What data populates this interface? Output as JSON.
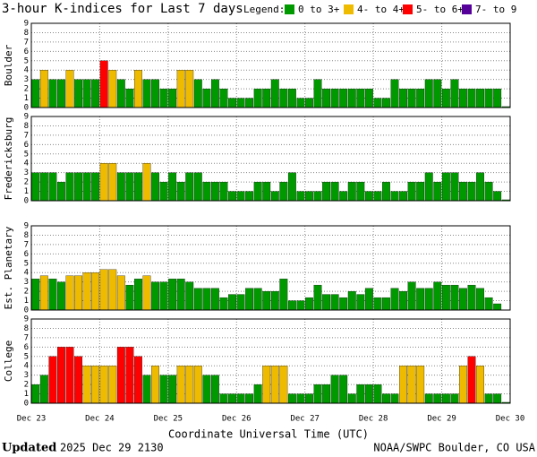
{
  "title": "3-hour K-indices for Last 7 days",
  "legend": {
    "title": "Legend:",
    "entries": [
      {
        "name": "0 to 3+",
        "color": "#009900"
      },
      {
        "name": "4- to 4+",
        "color": "#eebb00"
      },
      {
        "name": "5- to 6+",
        "color": "#ff0000"
      },
      {
        "name": "7- to 9",
        "color": "#550099"
      }
    ]
  },
  "x_ticks": [
    "Dec 23",
    "Dec 24",
    "Dec 25",
    "Dec 26",
    "Dec 27",
    "Dec 28",
    "Dec 29",
    "Dec 30"
  ],
  "x_label": "Coordinate Universal Time (UTC)",
  "updated_label": "Updated",
  "updated": "2025 Dec 29 2130",
  "credit": "NOAA/SWPC Boulder, CO USA",
  "chart_data": [
    {
      "type": "bar",
      "y_label": "Boulder",
      "ylim": [
        0,
        9
      ],
      "yticks": [
        0,
        1,
        2,
        3,
        4,
        5,
        6,
        7,
        8,
        9
      ],
      "grid": true,
      "values": [
        3,
        4,
        3,
        3,
        4,
        3,
        3,
        3,
        5,
        4,
        3,
        2,
        4,
        3,
        3,
        2,
        2,
        4,
        4,
        3,
        2,
        3,
        2,
        1,
        1,
        1,
        2,
        2,
        3,
        2,
        2,
        1,
        1,
        3,
        2,
        2,
        2,
        2,
        2,
        2,
        1,
        1,
        3,
        2,
        2,
        2,
        3,
        3,
        2,
        3,
        2,
        2,
        2,
        2,
        2,
        0.1
      ],
      "colors": [
        "#009900",
        "#eebb00",
        "#009900",
        "#009900",
        "#eebb00",
        "#009900",
        "#009900",
        "#009900",
        "#ff0000",
        "#eebb00",
        "#009900",
        "#009900",
        "#eebb00",
        "#009900",
        "#009900",
        "#009900",
        "#009900",
        "#eebb00",
        "#eebb00",
        "#009900",
        "#009900",
        "#009900",
        "#009900",
        "#009900",
        "#009900",
        "#009900",
        "#009900",
        "#009900",
        "#009900",
        "#009900",
        "#009900",
        "#009900",
        "#009900",
        "#009900",
        "#009900",
        "#009900",
        "#009900",
        "#009900",
        "#009900",
        "#009900",
        "#009900",
        "#009900",
        "#009900",
        "#009900",
        "#009900",
        "#009900",
        "#009900",
        "#009900",
        "#009900",
        "#009900",
        "#009900",
        "#009900",
        "#009900",
        "#009900",
        "#009900",
        "#009900"
      ]
    },
    {
      "type": "bar",
      "y_label": "Fredericksburg",
      "ylim": [
        0,
        9
      ],
      "yticks": [
        0,
        1,
        2,
        3,
        4,
        5,
        6,
        7,
        8,
        9
      ],
      "grid": true,
      "values": [
        3,
        3,
        3,
        2,
        3,
        3,
        3,
        3,
        4,
        4,
        3,
        3,
        3,
        4,
        3,
        2,
        3,
        2,
        3,
        3,
        2,
        2,
        2,
        1,
        1,
        1,
        2,
        2,
        1,
        2,
        3,
        1,
        1,
        1,
        2,
        2,
        1,
        2,
        2,
        1,
        1,
        2,
        1,
        1,
        2,
        2,
        3,
        2,
        3,
        3,
        2,
        2,
        3,
        2,
        1,
        0.1
      ],
      "colors": [
        "#009900",
        "#009900",
        "#009900",
        "#009900",
        "#009900",
        "#009900",
        "#009900",
        "#009900",
        "#eebb00",
        "#eebb00",
        "#009900",
        "#009900",
        "#009900",
        "#eebb00",
        "#009900",
        "#009900",
        "#009900",
        "#009900",
        "#009900",
        "#009900",
        "#009900",
        "#009900",
        "#009900",
        "#009900",
        "#009900",
        "#009900",
        "#009900",
        "#009900",
        "#009900",
        "#009900",
        "#009900",
        "#009900",
        "#009900",
        "#009900",
        "#009900",
        "#009900",
        "#009900",
        "#009900",
        "#009900",
        "#009900",
        "#009900",
        "#009900",
        "#009900",
        "#009900",
        "#009900",
        "#009900",
        "#009900",
        "#009900",
        "#009900",
        "#009900",
        "#009900",
        "#009900",
        "#009900",
        "#009900",
        "#009900",
        "#009900"
      ]
    },
    {
      "type": "bar",
      "y_label": "Est. Planetary",
      "ylim": [
        0,
        9
      ],
      "yticks": [
        0,
        1,
        2,
        3,
        4,
        5,
        6,
        7,
        8,
        9
      ],
      "grid": true,
      "values": [
        3.33,
        3.67,
        3.33,
        3,
        3.67,
        3.67,
        4,
        4,
        4.33,
        4.33,
        3.67,
        2.67,
        3.33,
        3.67,
        3,
        3,
        3.33,
        3.33,
        3,
        2.33,
        2.33,
        2.33,
        1.33,
        1.67,
        1.67,
        2.33,
        2.33,
        2,
        2,
        3.33,
        1,
        1,
        1.33,
        2.67,
        1.67,
        1.67,
        1.33,
        2,
        1.67,
        2.33,
        1.33,
        1.33,
        2.33,
        2,
        3,
        2.33,
        2.33,
        3,
        2.67,
        2.67,
        2.33,
        2.67,
        2.33,
        1.33,
        0.67,
        0
      ],
      "colors": [
        "#009900",
        "#eebb00",
        "#009900",
        "#009900",
        "#eebb00",
        "#eebb00",
        "#eebb00",
        "#eebb00",
        "#eebb00",
        "#eebb00",
        "#eebb00",
        "#009900",
        "#009900",
        "#eebb00",
        "#009900",
        "#009900",
        "#009900",
        "#009900",
        "#009900",
        "#009900",
        "#009900",
        "#009900",
        "#009900",
        "#009900",
        "#009900",
        "#009900",
        "#009900",
        "#009900",
        "#009900",
        "#009900",
        "#009900",
        "#009900",
        "#009900",
        "#009900",
        "#009900",
        "#009900",
        "#009900",
        "#009900",
        "#009900",
        "#009900",
        "#009900",
        "#009900",
        "#009900",
        "#009900",
        "#009900",
        "#009900",
        "#009900",
        "#009900",
        "#009900",
        "#009900",
        "#009900",
        "#009900",
        "#009900",
        "#009900",
        "#009900",
        "#009900"
      ]
    },
    {
      "type": "bar",
      "y_label": "College",
      "ylim": [
        0,
        9
      ],
      "yticks": [
        0,
        1,
        2,
        3,
        4,
        5,
        6,
        7,
        8,
        9
      ],
      "grid": true,
      "values": [
        2,
        3,
        5,
        6,
        6,
        5,
        4,
        4,
        4,
        4,
        6,
        6,
        5,
        3,
        4,
        3,
        3,
        4,
        4,
        4,
        3,
        3,
        1,
        1,
        1,
        1,
        2,
        4,
        4,
        4,
        1,
        1,
        1,
        2,
        2,
        3,
        3,
        1,
        2,
        2,
        2,
        1,
        1,
        4,
        4,
        4,
        1,
        1,
        1,
        1,
        4,
        5,
        4,
        1,
        1,
        0.1
      ],
      "colors": [
        "#009900",
        "#009900",
        "#ff0000",
        "#ff0000",
        "#ff0000",
        "#ff0000",
        "#eebb00",
        "#eebb00",
        "#eebb00",
        "#eebb00",
        "#ff0000",
        "#ff0000",
        "#ff0000",
        "#009900",
        "#eebb00",
        "#009900",
        "#009900",
        "#eebb00",
        "#eebb00",
        "#eebb00",
        "#009900",
        "#009900",
        "#009900",
        "#009900",
        "#009900",
        "#009900",
        "#009900",
        "#eebb00",
        "#eebb00",
        "#eebb00",
        "#009900",
        "#009900",
        "#009900",
        "#009900",
        "#009900",
        "#009900",
        "#009900",
        "#009900",
        "#009900",
        "#009900",
        "#009900",
        "#009900",
        "#009900",
        "#eebb00",
        "#eebb00",
        "#eebb00",
        "#009900",
        "#009900",
        "#009900",
        "#009900",
        "#eebb00",
        "#ff0000",
        "#eebb00",
        "#009900",
        "#009900",
        "#009900"
      ]
    }
  ]
}
